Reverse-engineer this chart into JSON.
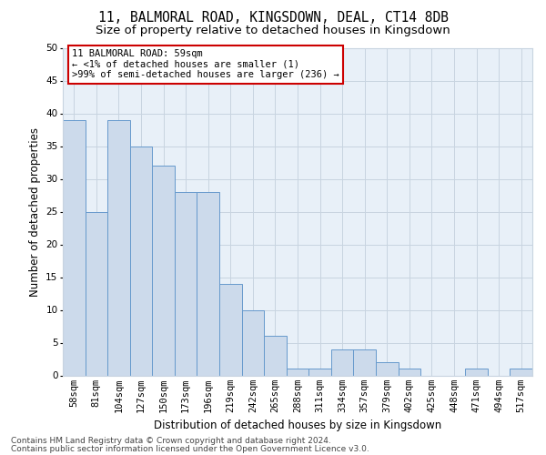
{
  "title": "11, BALMORAL ROAD, KINGSDOWN, DEAL, CT14 8DB",
  "subtitle": "Size of property relative to detached houses in Kingsdown",
  "xlabel": "Distribution of detached houses by size in Kingsdown",
  "ylabel": "Number of detached properties",
  "categories": [
    "58sqm",
    "81sqm",
    "104sqm",
    "127sqm",
    "150sqm",
    "173sqm",
    "196sqm",
    "219sqm",
    "242sqm",
    "265sqm",
    "288sqm",
    "311sqm",
    "334sqm",
    "357sqm",
    "379sqm",
    "402sqm",
    "425sqm",
    "448sqm",
    "471sqm",
    "494sqm",
    "517sqm"
  ],
  "values": [
    39,
    25,
    39,
    35,
    32,
    28,
    28,
    14,
    10,
    6,
    1,
    1,
    4,
    4,
    2,
    1,
    0,
    0,
    1,
    0,
    1
  ],
  "bar_color": "#ccdaeb",
  "bar_edge_color": "#6699cc",
  "ylim": [
    0,
    50
  ],
  "yticks": [
    0,
    5,
    10,
    15,
    20,
    25,
    30,
    35,
    40,
    45,
    50
  ],
  "annotation_line1": "11 BALMORAL ROAD: 59sqm",
  "annotation_line2": "← <1% of detached houses are smaller (1)",
  "annotation_line3": ">99% of semi-detached houses are larger (236) →",
  "annotation_box_color": "#ffffff",
  "annotation_box_edge": "#cc0000",
  "footer_line1": "Contains HM Land Registry data © Crown copyright and database right 2024.",
  "footer_line2": "Contains public sector information licensed under the Open Government Licence v3.0.",
  "background_color": "#ffffff",
  "plot_bg_color": "#e8f0f8",
  "grid_color": "#c8d4e0",
  "title_fontsize": 10.5,
  "subtitle_fontsize": 9.5,
  "axis_label_fontsize": 8.5,
  "tick_fontsize": 7.5,
  "footer_fontsize": 6.5
}
